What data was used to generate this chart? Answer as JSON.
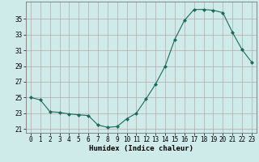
{
  "x": [
    0,
    1,
    2,
    3,
    4,
    5,
    6,
    7,
    8,
    9,
    10,
    11,
    12,
    13,
    14,
    15,
    16,
    17,
    18,
    19,
    20,
    21,
    22,
    23
  ],
  "y": [
    25.0,
    24.7,
    23.2,
    23.1,
    22.9,
    22.8,
    22.7,
    21.5,
    21.2,
    21.3,
    22.3,
    23.0,
    24.8,
    26.7,
    29.0,
    32.4,
    34.8,
    36.2,
    36.2,
    36.1,
    35.8,
    33.3,
    31.1,
    29.5
  ],
  "line_color": "#1a6b5a",
  "marker": "D",
  "marker_size": 2.0,
  "bg_color": "#ceeae9",
  "grid_color": "#b8a8a8",
  "xlabel": "Humidex (Indice chaleur)",
  "ylim": [
    20.5,
    37.2
  ],
  "yticks": [
    21,
    23,
    25,
    27,
    29,
    31,
    33,
    35
  ],
  "xticks": [
    0,
    1,
    2,
    3,
    4,
    5,
    6,
    7,
    8,
    9,
    10,
    11,
    12,
    13,
    14,
    15,
    16,
    17,
    18,
    19,
    20,
    21,
    22,
    23
  ],
  "tick_fontsize": 5.5,
  "label_fontsize": 6.5
}
